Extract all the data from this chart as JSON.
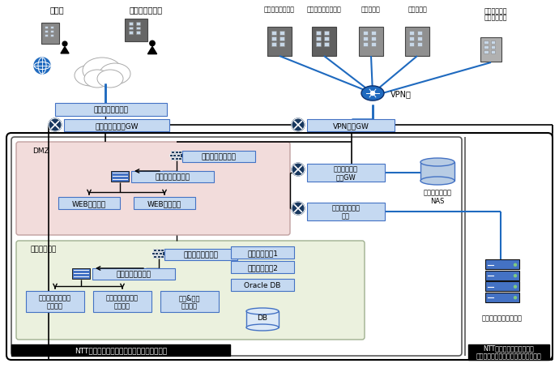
{
  "bg_color": "#ffffff",
  "fig_width": 6.9,
  "fig_height": 4.6,
  "dpi": 100,
  "colors": {
    "light_blue": "#c5d9f1",
    "blue_line": "#1f6abf",
    "dark_blue": "#1f3864",
    "box_border_blue": "#4472c4",
    "dmz_fill": "#f2dcdb",
    "private_fill": "#ebf1de",
    "black": "#000000",
    "firewall_dark": "#243f60",
    "gw_circle": "#17375e",
    "nas_fill": "#b8cce4",
    "server_fill": "#17375e",
    "server_blue": "#4472c4",
    "outer_border": "#000000",
    "inner_border": "#595959",
    "building_dark": "#595959",
    "building_med": "#808080",
    "building_light": "#a6a6a6",
    "vpn_blue": "#1f6abf",
    "onprem_blue": "#17375e"
  },
  "labels": {
    "need": "需要家",
    "partner": "パートナー企業",
    "eerex": "イーレックス本社",
    "customer": "カスタマーセンター",
    "tosa": "土佐発電所",
    "saiki": "佐伯発電所",
    "print1": "印刷代行業者",
    "print2": "決済代行業者",
    "vpn_net": "VPN網",
    "security": "セキュリティ対策",
    "inet_gw": "インターネットGW",
    "vpn_gw": "VPN接続GW",
    "dmz": "DMZ",
    "firewall": "ファイアウォール",
    "lb": "ロードバランサー",
    "web": "WEBサーバー",
    "private": "プライベート",
    "app": "アプリケーション\nサーバー",
    "agg": "集計&計算\nサーバー",
    "gw1": "ゲートウェイ1",
    "gw2": "ゲートウェイ2",
    "oracle": "Oracle DB",
    "db": "DB",
    "svc_gw": "サービス相互\n接続GW",
    "colo": "コロケーション\n接続",
    "nas": "バックアップ用\nNAS",
    "onprem": "オンプレミスサーバー",
    "ntt_cloud": "NTTコミュニケーションズ（クラウド基盤）",
    "ntt_dc": "NTTコミュニケーションズ\n（データセンター・コロケーション）"
  }
}
